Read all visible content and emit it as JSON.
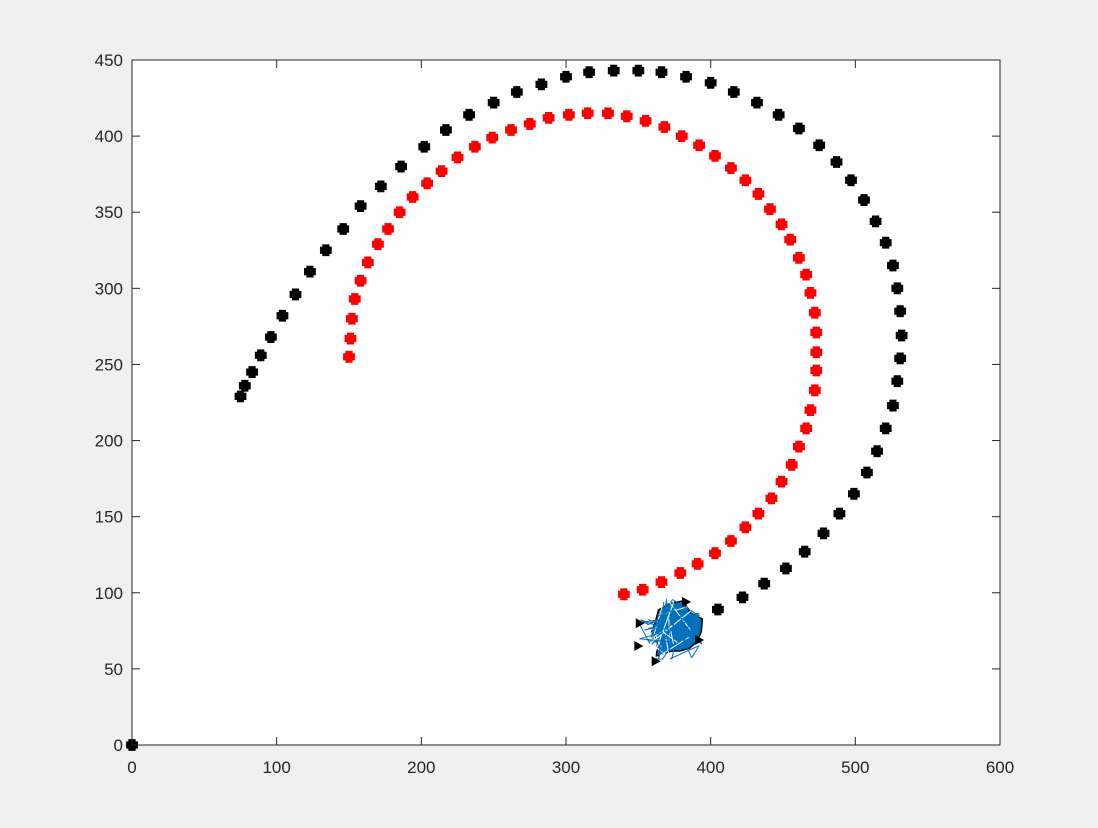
{
  "chart_data": {
    "type": "scatter",
    "title": "",
    "xlabel": "",
    "ylabel": "",
    "xlim": [
      0,
      600
    ],
    "ylim": [
      0,
      450
    ],
    "grid": false,
    "legend": "none",
    "x_ticks": [
      0,
      100,
      200,
      300,
      400,
      500,
      600
    ],
    "y_ticks": [
      0,
      50,
      100,
      150,
      200,
      250,
      300,
      350,
      400,
      450
    ],
    "x_tick_labels": [
      "0",
      "100",
      "200",
      "300",
      "400",
      "500",
      "600"
    ],
    "y_tick_labels": [
      "0",
      "50",
      "100",
      "150",
      "200",
      "250",
      "300",
      "350",
      "400",
      "450"
    ],
    "colors": {
      "outer": "#000000",
      "inner": "#ff0000",
      "robot": "#0072bd",
      "robot_edge": "#000000",
      "axes_bg": "#ffffff",
      "figure_bg": "#f0f0f0"
    },
    "series": [
      {
        "marker": "plus",
        "color": "#000000",
        "points": [
          [
            75,
            229
          ],
          [
            78,
            236
          ],
          [
            83,
            245
          ],
          [
            89,
            256
          ],
          [
            96,
            268
          ],
          [
            104,
            282
          ],
          [
            113,
            296
          ],
          [
            123,
            311
          ],
          [
            134,
            325
          ],
          [
            146,
            339
          ],
          [
            158,
            354
          ],
          [
            172,
            367
          ],
          [
            186,
            380
          ],
          [
            202,
            393
          ],
          [
            217,
            404
          ],
          [
            233,
            414
          ],
          [
            250,
            422
          ],
          [
            266,
            429
          ],
          [
            283,
            434
          ],
          [
            300,
            439
          ],
          [
            316,
            442
          ],
          [
            333,
            443
          ],
          [
            350,
            443
          ],
          [
            366,
            442
          ],
          [
            383,
            439
          ],
          [
            400,
            435
          ],
          [
            416,
            429
          ],
          [
            432,
            422
          ],
          [
            447,
            414
          ],
          [
            461,
            405
          ],
          [
            475,
            394
          ],
          [
            487,
            383
          ],
          [
            497,
            371
          ],
          [
            506,
            358
          ],
          [
            514,
            344
          ],
          [
            521,
            330
          ],
          [
            526,
            315
          ],
          [
            529,
            300
          ],
          [
            531,
            285
          ],
          [
            532,
            269
          ],
          [
            531,
            254
          ],
          [
            529,
            239
          ],
          [
            526,
            223
          ],
          [
            521,
            208
          ],
          [
            515,
            193
          ],
          [
            508,
            179
          ],
          [
            499,
            165
          ],
          [
            489,
            152
          ],
          [
            478,
            139
          ],
          [
            465,
            127
          ],
          [
            452,
            116
          ],
          [
            437,
            106
          ],
          [
            422,
            97
          ],
          [
            405,
            89
          ],
          [
            0,
            0
          ]
        ]
      },
      {
        "marker": "plus",
        "color": "#ff0000",
        "points": [
          [
            150,
            255
          ],
          [
            151,
            267
          ],
          [
            152,
            280
          ],
          [
            154,
            293
          ],
          [
            158,
            305
          ],
          [
            163,
            317
          ],
          [
            170,
            329
          ],
          [
            177,
            339
          ],
          [
            185,
            350
          ],
          [
            194,
            360
          ],
          [
            204,
            369
          ],
          [
            214,
            377
          ],
          [
            225,
            386
          ],
          [
            237,
            393
          ],
          [
            249,
            399
          ],
          [
            262,
            404
          ],
          [
            275,
            408
          ],
          [
            288,
            412
          ],
          [
            302,
            414
          ],
          [
            315,
            415
          ],
          [
            329,
            415
          ],
          [
            342,
            413
          ],
          [
            355,
            410
          ],
          [
            368,
            406
          ],
          [
            380,
            400
          ],
          [
            392,
            394
          ],
          [
            403,
            387
          ],
          [
            414,
            379
          ],
          [
            424,
            371
          ],
          [
            433,
            362
          ],
          [
            441,
            352
          ],
          [
            449,
            342
          ],
          [
            455,
            332
          ],
          [
            461,
            320
          ],
          [
            466,
            309
          ],
          [
            469,
            297
          ],
          [
            472,
            284
          ],
          [
            473,
            271
          ],
          [
            473,
            258
          ],
          [
            473,
            246
          ],
          [
            472,
            233
          ],
          [
            469,
            220
          ],
          [
            466,
            208
          ],
          [
            461,
            196
          ],
          [
            456,
            184
          ],
          [
            449,
            173
          ],
          [
            442,
            162
          ],
          [
            433,
            152
          ],
          [
            424,
            143
          ],
          [
            414,
            134
          ],
          [
            403,
            126
          ],
          [
            391,
            119
          ],
          [
            379,
            113
          ],
          [
            366,
            107
          ],
          [
            353,
            102
          ],
          [
            340,
            99
          ]
        ]
      }
    ],
    "robot": {
      "x_range": [
        348,
        396
      ],
      "y_range": [
        52,
        97
      ]
    }
  }
}
